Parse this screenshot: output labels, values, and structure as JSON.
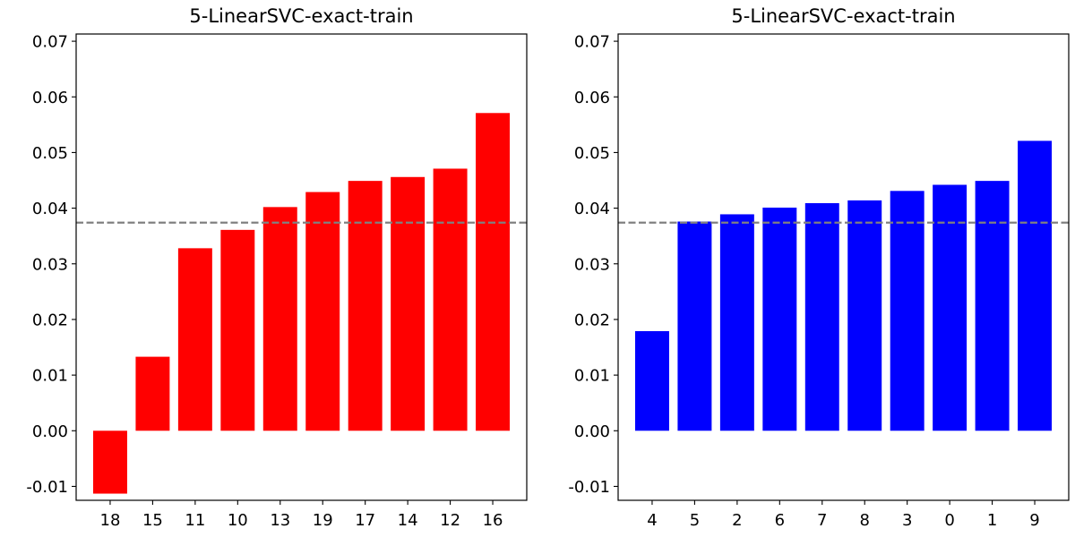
{
  "chart_data": [
    {
      "type": "bar",
      "title": "5-LinearSVC-exact-train",
      "categories": [
        "18",
        "15",
        "11",
        "10",
        "13",
        "19",
        "17",
        "14",
        "12",
        "16"
      ],
      "values": [
        -0.0113,
        0.0133,
        0.0328,
        0.0361,
        0.0402,
        0.0429,
        0.0449,
        0.0456,
        0.0471,
        0.0571
      ],
      "bar_color": "#ff0000",
      "reference_line": 0.0374,
      "reference_line_color": "#808080",
      "reference_line_style": "dashed",
      "ylim": [
        -0.0125,
        0.0713
      ],
      "yticks": [
        "-0.01",
        "0.00",
        "0.01",
        "0.02",
        "0.03",
        "0.04",
        "0.05",
        "0.06",
        "0.07"
      ],
      "ytick_values": [
        -0.01,
        0.0,
        0.01,
        0.02,
        0.03,
        0.04,
        0.05,
        0.06,
        0.07
      ],
      "xlabel": "",
      "ylabel": "",
      "grid": false
    },
    {
      "type": "bar",
      "title": "5-LinearSVC-exact-train",
      "categories": [
        "4",
        "5",
        "2",
        "6",
        "7",
        "8",
        "3",
        "0",
        "1",
        "9"
      ],
      "values": [
        0.0179,
        0.0376,
        0.0389,
        0.0401,
        0.0409,
        0.0414,
        0.0431,
        0.0442,
        0.0449,
        0.0521
      ],
      "bar_color": "#0000ff",
      "reference_line": 0.0374,
      "reference_line_color": "#808080",
      "reference_line_style": "dashed",
      "ylim": [
        -0.0125,
        0.0713
      ],
      "yticks": [
        "-0.01",
        "0.00",
        "0.01",
        "0.02",
        "0.03",
        "0.04",
        "0.05",
        "0.06",
        "0.07"
      ],
      "ytick_values": [
        -0.01,
        0.0,
        0.01,
        0.02,
        0.03,
        0.04,
        0.05,
        0.06,
        0.07
      ],
      "xlabel": "",
      "ylabel": "",
      "grid": false
    }
  ]
}
